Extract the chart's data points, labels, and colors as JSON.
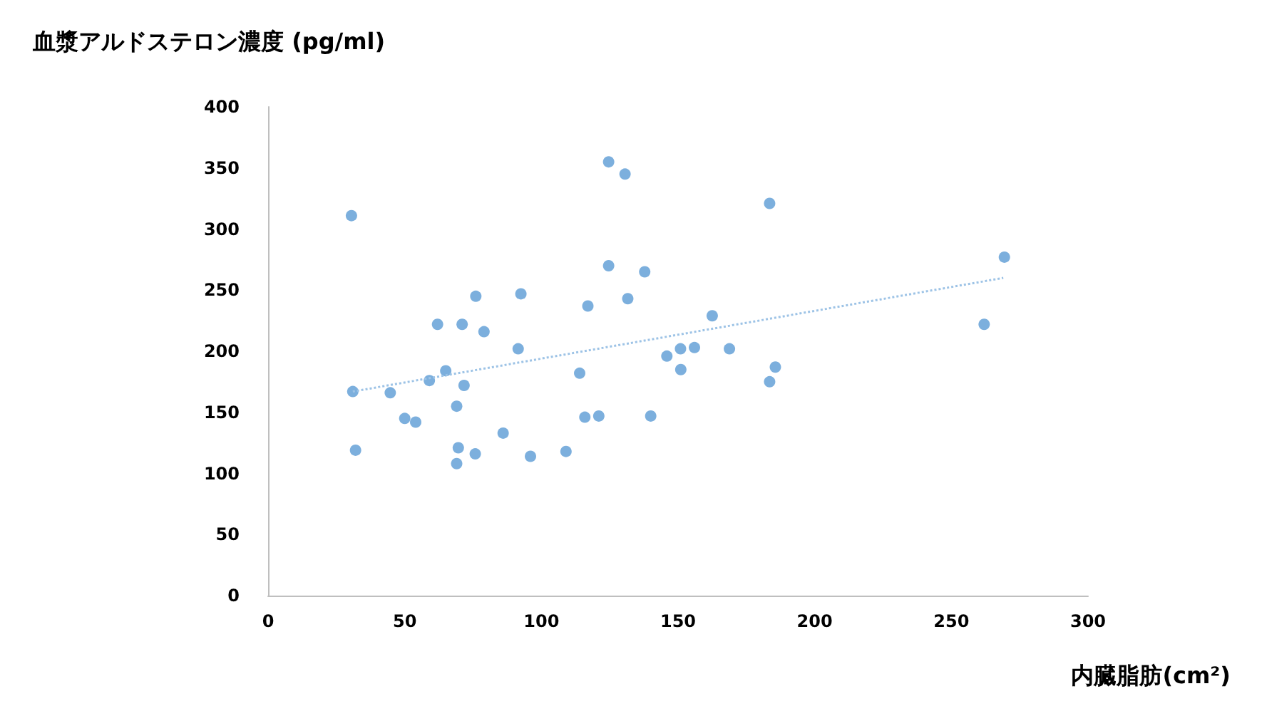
{
  "chart_data": {
    "type": "scatter",
    "title": "血漿アルドステロン濃度 (pg/ml)",
    "xlabel": "内臓脂肪(cm²)",
    "xlim": [
      0,
      300
    ],
    "xticks": [
      0,
      50,
      100,
      150,
      200,
      250,
      300
    ],
    "ylim": [
      0,
      400
    ],
    "yticks": [
      0,
      50,
      100,
      150,
      200,
      250,
      300,
      350,
      400
    ],
    "grid": false,
    "marker": "circle",
    "series": [
      {
        "color": "#5b9bd5",
        "x": [
          30.5,
          31,
          32,
          44.7,
          50,
          54,
          59,
          62,
          65,
          69,
          69.6,
          69,
          71,
          71.7,
          76,
          75.8,
          79,
          86,
          91.5,
          92.5,
          96,
          109,
          114,
          115.9,
          117,
          121,
          124.6,
          124.6,
          130.6,
          131.6,
          137.8,
          140,
          145.9,
          150.9,
          151,
          156,
          162.5,
          168.8,
          183.5,
          183.5,
          185.6,
          262,
          269.4
        ],
        "values": [
          311,
          167,
          119,
          166,
          145,
          142,
          176,
          222,
          184,
          155,
          121,
          108,
          222,
          172,
          245,
          116,
          216,
          133,
          202,
          247,
          114,
          118,
          182,
          146,
          237,
          147,
          355,
          270,
          345,
          243,
          265,
          147,
          196,
          202,
          185,
          203,
          229,
          202,
          321,
          175,
          187,
          222,
          277
        ]
      },
      {
        "type": "line",
        "color": "#9dc3e6",
        "line_style": "dotted",
        "marker": "none",
        "x": [
          31,
          269
        ],
        "values": [
          167,
          260
        ]
      }
    ]
  }
}
